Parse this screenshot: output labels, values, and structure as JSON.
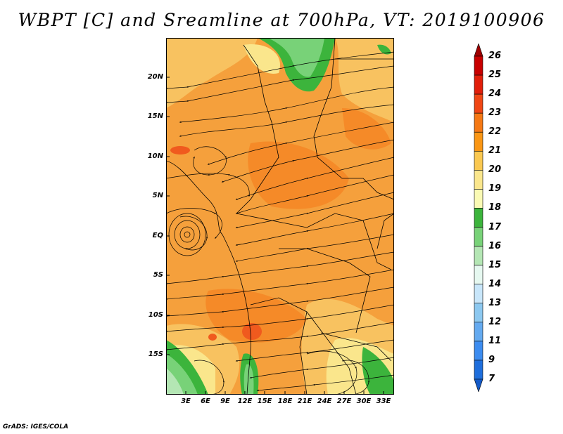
{
  "title": "WBPT [C] and Sreamline at 700hPa, VT: 2019100906",
  "lat_labels": [
    "20N",
    "15N",
    "10N",
    "5N",
    "EQ",
    "5S",
    "10S",
    "15S"
  ],
  "lon_labels": [
    "3E",
    "6E",
    "9E",
    "12E",
    "15E",
    "18E",
    "21E",
    "24E",
    "27E",
    "30E",
    "33E"
  ],
  "colorbar": {
    "labels": [
      "26",
      "25",
      "24",
      "23",
      "22",
      "21",
      "20",
      "19",
      "18",
      "17",
      "16",
      "15",
      "14",
      "13",
      "12",
      "11",
      "9",
      "7"
    ],
    "colors": [
      "#a00000",
      "#c80000",
      "#e11e0a",
      "#f04614",
      "#f57814",
      "#fa9614",
      "#fac850",
      "#fae68c",
      "#fafab4",
      "#3cb43c",
      "#78d278",
      "#b4e6b4",
      "#e6f8f0",
      "#c8e6fa",
      "#8cc8f0",
      "#64aaf0",
      "#3c8cf0",
      "#1e6edc",
      "#145ac8"
    ]
  },
  "credit": "GrADS: IGES/COLA"
}
